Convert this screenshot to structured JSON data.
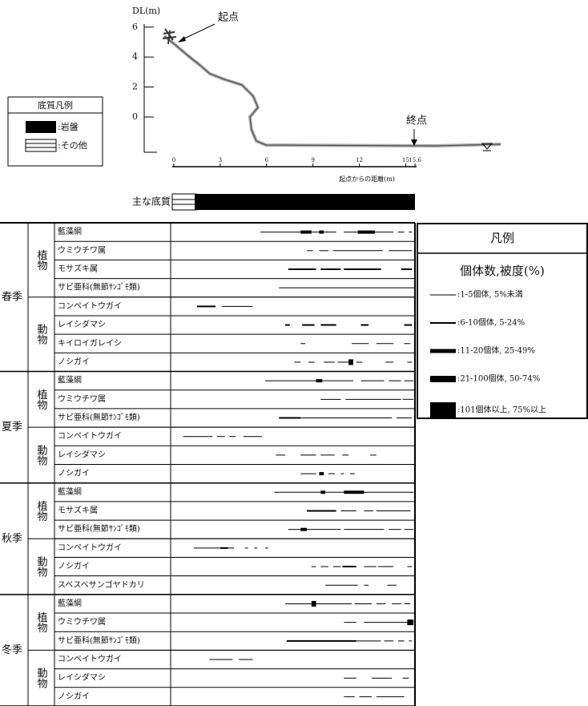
{
  "profile": {
    "y_axis_label": "DL(m)",
    "y_ticks": [
      6,
      4,
      2,
      0
    ],
    "x_ticks": [
      0,
      3,
      6,
      9,
      12,
      15,
      15.6
    ],
    "x_axis_label": "起点からの距離(m)",
    "start_label": "起点",
    "end_label": "終点",
    "substrate_label": "主な底質"
  },
  "substrate_legend": {
    "title": "底質凡例",
    "items": [
      ":岩盤",
      ":その他"
    ]
  },
  "legend": {
    "title": "凡例",
    "subtitle": "個体数,被度(%)",
    "items": [
      ":1-5個体, 5%未満",
      ":6-10個体, 5-24%",
      ":11-20個体, 25-49%",
      ":21-100個体, 50-74%",
      ":101個体以上, 75%以上"
    ]
  },
  "seasons": [
    {
      "name": "春季",
      "groups": [
        {
          "name": "植物",
          "rows": [
            {
              "species": "藍藻綱",
              "segments": [
                [
                  5.6,
                  8.2,
                  1
                ],
                [
                  8.2,
                  8.9,
                  3
                ],
                [
                  8.9,
                  9.4,
                  1
                ],
                [
                  9.4,
                  9.7,
                  3
                ],
                [
                  9.7,
                  10.5,
                  1
                ],
                [
                  11.0,
                  11.9,
                  1
                ],
                [
                  11.9,
                  13.0,
                  3
                ],
                [
                  13.0,
                  14.2,
                  1
                ],
                [
                  14.5,
                  14.9,
                  1
                ],
                [
                  15.2,
                  15.4,
                  1
                ]
              ]
            },
            {
              "species": "ウミウチワ属",
              "segments": [
                [
                  8.6,
                  9.0,
                  1
                ],
                [
                  9.4,
                  10.0,
                  1
                ],
                [
                  10.3,
                  13.5,
                  1
                ],
                [
                  13.9,
                  15.4,
                  1
                ]
              ]
            },
            {
              "species": "モサズキ属",
              "segments": [
                [
                  7.4,
                  9.2,
                  2
                ],
                [
                  9.5,
                  10.8,
                  2
                ],
                [
                  11.0,
                  13.4,
                  2
                ],
                [
                  14.7,
                  15.4,
                  2
                ]
              ]
            },
            {
              "species": "サビ亜科(無節ｻﾝｺﾞﾓ類)",
              "segments": [
                [
                  6.8,
                  15.6,
                  1
                ]
              ]
            }
          ]
        },
        {
          "name": "動物",
          "rows": [
            {
              "species": "コンペイトウガイ",
              "segments": [
                [
                  1.5,
                  2.7,
                  2
                ],
                [
                  3.1,
                  5.1,
                  1
                ]
              ]
            },
            {
              "species": "レイシダマシ",
              "segments": [
                [
                  7.2,
                  7.5,
                  2
                ],
                [
                  8.3,
                  9.1,
                  2
                ],
                [
                  9.5,
                  10.5,
                  2
                ],
                [
                  12.1,
                  12.6,
                  2
                ],
                [
                  14.9,
                  15.4,
                  2
                ]
              ]
            },
            {
              "species": "キイロイガレイシ",
              "segments": [
                [
                  8.2,
                  8.5,
                  1
                ],
                [
                  11.5,
                  12.6,
                  1
                ],
                [
                  13.1,
                  14.2,
                  1
                ],
                [
                  14.9,
                  15.3,
                  1
                ]
              ]
            },
            {
              "species": "ノシガイ",
              "segments": [
                [
                  7.8,
                  8.2,
                  1
                ],
                [
                  8.7,
                  9.1,
                  1
                ],
                [
                  9.7,
                  10.4,
                  1
                ],
                [
                  10.6,
                  11.3,
                  1
                ],
                [
                  11.3,
                  11.6,
                  4
                ],
                [
                  11.8,
                  12.2,
                  1
                ],
                [
                  13.7,
                  14.2,
                  1
                ],
                [
                  15.1,
                  15.4,
                  1
                ]
              ]
            }
          ]
        }
      ]
    },
    {
      "name": "夏季",
      "groups": [
        {
          "name": "植物",
          "rows": [
            {
              "species": "藍藻綱",
              "segments": [
                [
                  5.9,
                  9.2,
                  1
                ],
                [
                  9.2,
                  9.6,
                  3
                ],
                [
                  9.6,
                  11.6,
                  1
                ],
                [
                  12.1,
                  13.6,
                  1
                ],
                [
                  13.9,
                  14.7,
                  1
                ],
                [
                  14.9,
                  15.5,
                  1
                ]
              ]
            },
            {
              "species": "ウミウチワ属",
              "segments": [
                [
                  9.5,
                  10.8,
                  1
                ],
                [
                  11.1,
                  14.7,
                  1
                ],
                [
                  14.8,
                  15.5,
                  1
                ]
              ]
            },
            {
              "species": "サビ亜科(無節ｻﾝｺﾞﾓ類)",
              "segments": [
                [
                  6.8,
                  8.2,
                  2
                ],
                [
                  8.2,
                  14.1,
                  1
                ],
                [
                  14.4,
                  15.4,
                  1
                ]
              ]
            }
          ]
        },
        {
          "name": "動物",
          "rows": [
            {
              "species": "コンペイトウガイ",
              "segments": [
                [
                  0.6,
                  2.5,
                  1
                ],
                [
                  2.8,
                  3.3,
                  1
                ],
                [
                  3.6,
                  4.0,
                  1
                ],
                [
                  4.5,
                  5.7,
                  1
                ]
              ]
            },
            {
              "species": "レイシダマシ",
              "segments": [
                [
                  6.6,
                  7.2,
                  1
                ],
                [
                  8.2,
                  9.2,
                  1
                ],
                [
                  9.5,
                  10.4,
                  1
                ],
                [
                  10.9,
                  11.3,
                  1
                ],
                [
                  12.7,
                  13.1,
                  1
                ]
              ]
            },
            {
              "species": "ノシガイ",
              "segments": [
                [
                  8.2,
                  9.2,
                  1
                ],
                [
                  9.4,
                  9.7,
                  3
                ],
                [
                  10.0,
                  10.4,
                  1
                ],
                [
                  10.8,
                  11.0,
                  1
                ],
                [
                  11.4,
                  11.7,
                  1
                ]
              ]
            }
          ]
        }
      ]
    },
    {
      "name": "秋季",
      "groups": [
        {
          "name": "植物",
          "rows": [
            {
              "species": "藍藻綱",
              "segments": [
                [
                  6.5,
                  9.5,
                  1
                ],
                [
                  9.5,
                  9.8,
                  3
                ],
                [
                  9.8,
                  11.0,
                  1
                ],
                [
                  11.0,
                  12.3,
                  3
                ],
                [
                  12.3,
                  15.5,
                  1
                ]
              ]
            },
            {
              "species": "モサズキ属",
              "segments": [
                [
                  8.6,
                  10.5,
                  2
                ],
                [
                  10.8,
                  11.8,
                  1
                ],
                [
                  12.3,
                  12.9,
                  1
                ],
                [
                  13.1,
                  15.3,
                  1
                ]
              ]
            },
            {
              "species": "サビ亜科(無節ｻﾝｺﾞﾓ類)",
              "segments": [
                [
                  7.4,
                  8.2,
                  1
                ],
                [
                  8.2,
                  8.6,
                  3
                ],
                [
                  8.6,
                  10.8,
                  1
                ],
                [
                  11.0,
                  13.6,
                  1
                ],
                [
                  13.9,
                  14.7,
                  1
                ],
                [
                  14.9,
                  15.5,
                  1
                ]
              ]
            }
          ]
        },
        {
          "name": "動物",
          "rows": [
            {
              "species": "コンペイトウガイ",
              "segments": [
                [
                  1.3,
                  3.0,
                  1
                ],
                [
                  3.0,
                  3.5,
                  2
                ],
                [
                  3.5,
                  3.9,
                  1
                ],
                [
                  4.6,
                  4.8,
                  1
                ],
                [
                  5.2,
                  5.4,
                  1
                ],
                [
                  5.9,
                  6.1,
                  1
                ]
              ]
            },
            {
              "species": "ノシガイ",
              "segments": [
                [
                  8.9,
                  9.2,
                  1
                ],
                [
                  9.5,
                  10.0,
                  1
                ],
                [
                  10.3,
                  10.8,
                  1
                ],
                [
                  10.9,
                  11.8,
                  2
                ],
                [
                  12.3,
                  13.1,
                  1
                ],
                [
                  13.2,
                  14.2,
                  1
                ],
                [
                  15.1,
                  15.4,
                  1
                ]
              ]
            },
            {
              "species": "スベスベサンゴヤドカリ",
              "segments": [
                [
                  9.8,
                  11.9,
                  1
                ],
                [
                  12.3,
                  12.6,
                  1
                ],
                [
                  13.8,
                  14.4,
                  1
                ]
              ]
            }
          ]
        }
      ]
    },
    {
      "name": "冬季",
      "groups": [
        {
          "name": "植物",
          "rows": [
            {
              "species": "藍藻綱",
              "segments": [
                [
                  7.2,
                  8.9,
                  1
                ],
                [
                  8.9,
                  9.2,
                  4
                ],
                [
                  9.2,
                  11.5,
                  1
                ],
                [
                  11.7,
                  12.8,
                  1
                ],
                [
                  13.1,
                  13.7,
                  1
                ],
                [
                  14.1,
                  14.7,
                  1
                ],
                [
                  14.9,
                  15.3,
                  1
                ]
              ]
            },
            {
              "species": "ウミウチワ属",
              "segments": [
                [
                  11.0,
                  11.8,
                  1
                ],
                [
                  12.3,
                  15.1,
                  1
                ],
                [
                  15.1,
                  15.5,
                  4
                ]
              ]
            },
            {
              "species": "サビ亜科(無節ｻﾝｺﾞﾓ類)",
              "segments": [
                [
                  7.3,
                  11.8,
                  2
                ],
                [
                  11.8,
                  13.4,
                  1
                ],
                [
                  13.6,
                  14.2,
                  1
                ],
                [
                  14.5,
                  14.9,
                  1
                ],
                [
                  15.2,
                  15.4,
                  1
                ]
              ]
            }
          ]
        },
        {
          "name": "動物",
          "rows": [
            {
              "species": "コンペイトウガイ",
              "segments": [
                [
                  2.3,
                  3.8,
                  1
                ],
                [
                  4.2,
                  5.1,
                  1
                ]
              ]
            },
            {
              "species": "レイシダマシ",
              "segments": [
                [
                  11.0,
                  11.8,
                  1
                ],
                [
                  12.8,
                  14.1,
                  1
                ],
                [
                  14.8,
                  15.2,
                  1
                ]
              ]
            },
            {
              "species": "ノシガイ",
              "segments": [
                [
                  11.0,
                  11.7,
                  1
                ],
                [
                  12.0,
                  12.8,
                  1
                ],
                [
                  13.1,
                  14.9,
                  1
                ]
              ]
            }
          ]
        }
      ]
    }
  ]
}
